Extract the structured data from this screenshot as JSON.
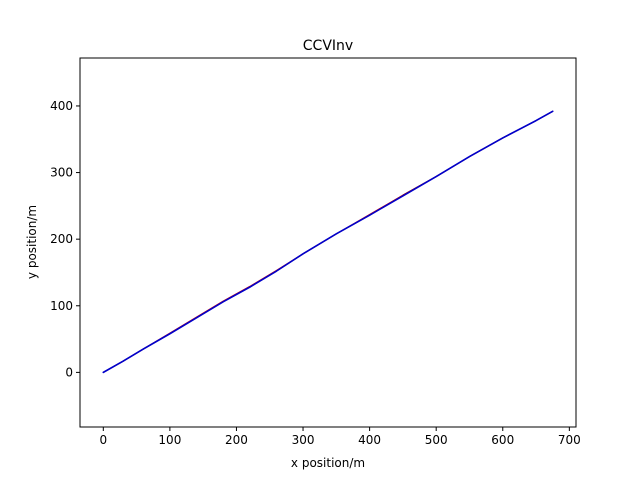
{
  "chart_data": {
    "type": "line",
    "title": "CCVInv",
    "xlabel": "x position/m",
    "ylabel": "y position/m",
    "xlim": [
      -35,
      710
    ],
    "ylim": [
      -82,
      472
    ],
    "xticks": [
      0,
      100,
      200,
      300,
      400,
      500,
      600,
      700
    ],
    "yticks": [
      0,
      100,
      200,
      300,
      400
    ],
    "grid": false,
    "legend": "none",
    "series": [
      {
        "color": "#000000",
        "x": [
          0,
          30,
          60,
          100,
          140,
          180,
          220,
          260,
          300,
          350,
          400,
          450,
          500,
          550,
          600,
          650,
          675
        ],
        "y": [
          0,
          17,
          35,
          58,
          82,
          106,
          128,
          152,
          178,
          208,
          236,
          266,
          294,
          324,
          352,
          378,
          392
        ]
      },
      {
        "color": "#cc0000",
        "x": [
          0,
          30,
          60,
          100,
          140,
          180,
          220,
          260,
          300,
          350,
          400,
          450,
          500,
          550,
          600,
          650,
          675
        ],
        "y": [
          0,
          17,
          35,
          59,
          83,
          107,
          129,
          153,
          178,
          208,
          237,
          266,
          294,
          324,
          352,
          378,
          392
        ]
      },
      {
        "color": "#0000cc",
        "x": [
          0,
          30,
          60,
          100,
          140,
          180,
          220,
          260,
          300,
          350,
          400,
          450,
          500,
          550,
          600,
          650,
          675
        ],
        "y": [
          0,
          17,
          35,
          58,
          82,
          106,
          128,
          152,
          178,
          208,
          236,
          265,
          294,
          324,
          352,
          378,
          392
        ]
      }
    ]
  }
}
